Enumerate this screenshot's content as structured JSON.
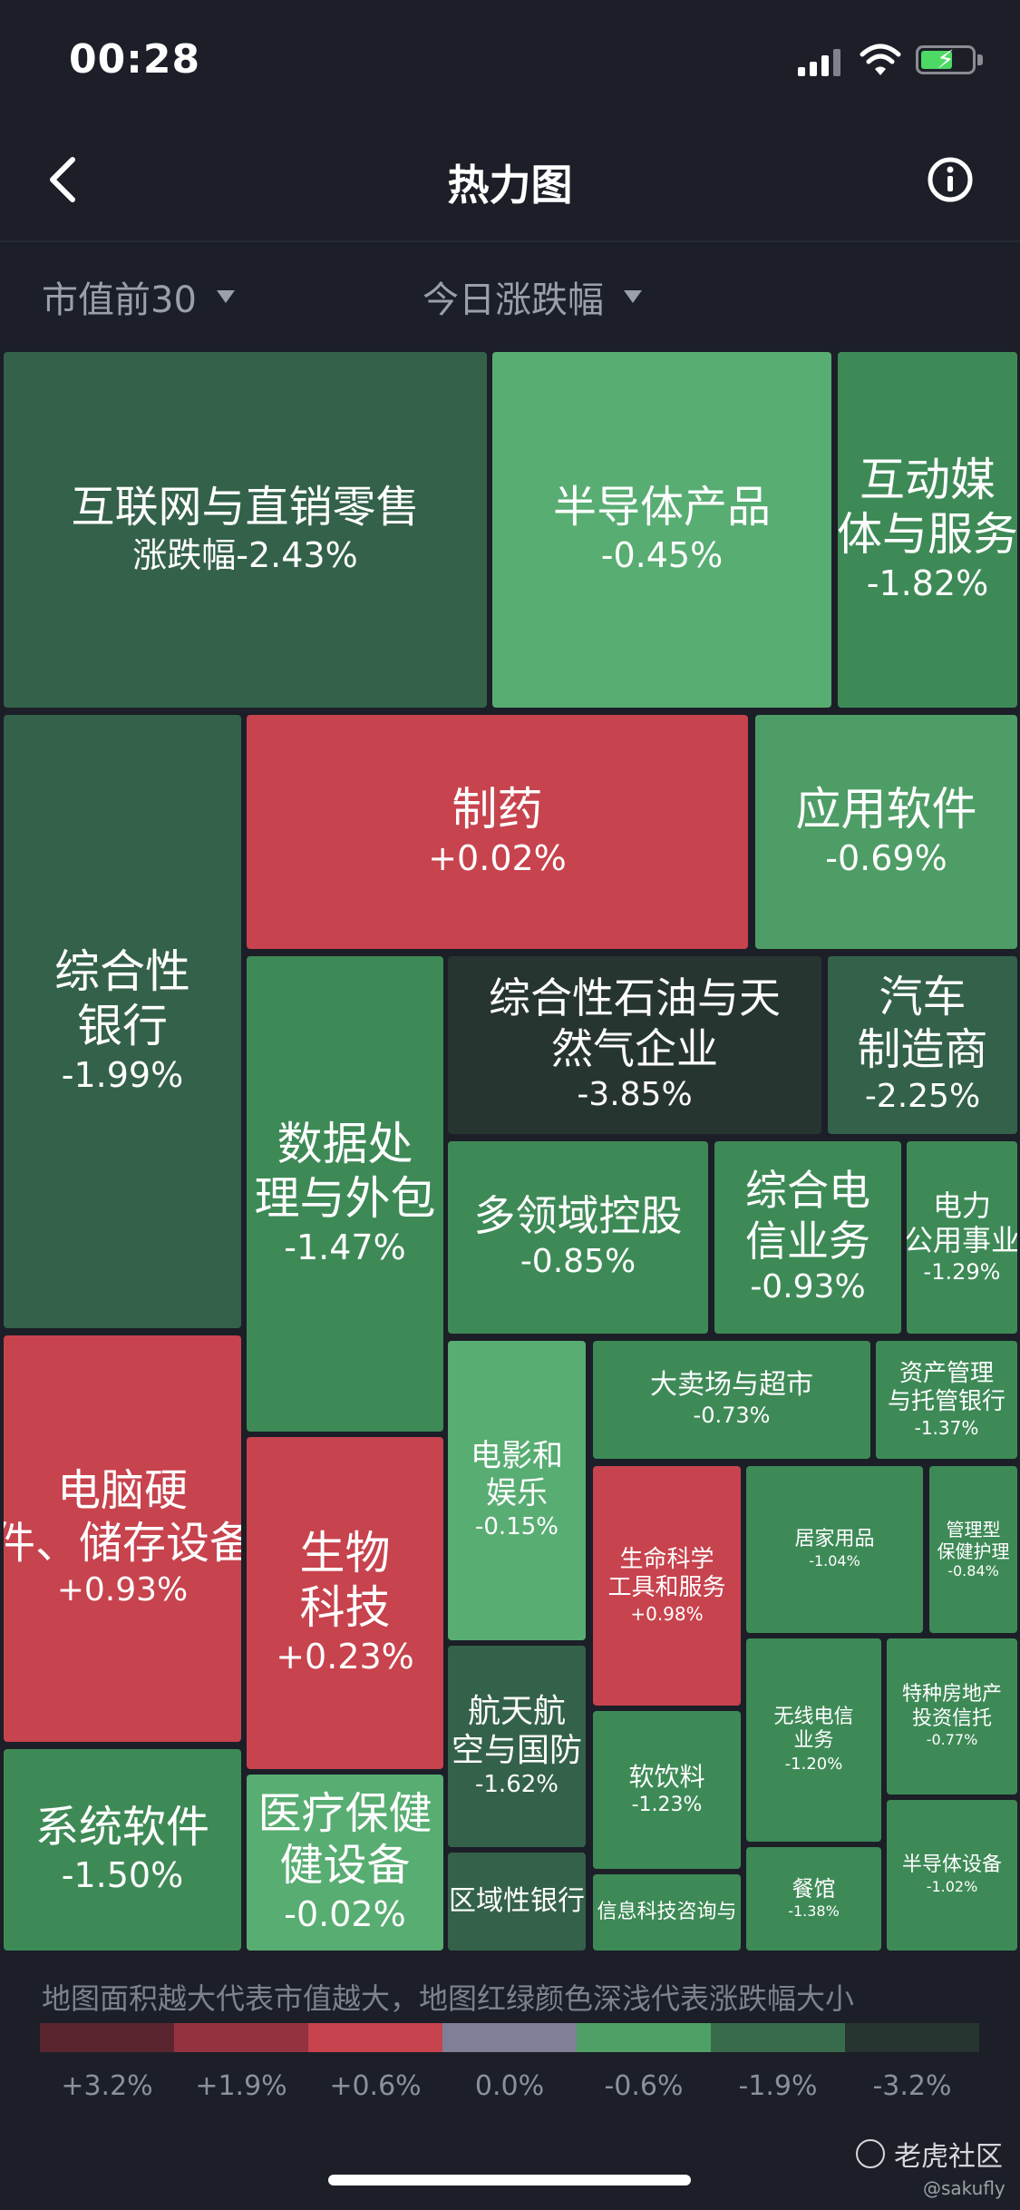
{
  "status_bar": {
    "time": "00:28"
  },
  "nav": {
    "title": "热力图",
    "back_icon": "chevron-left-icon",
    "info_icon": "info-circle-icon"
  },
  "filters": {
    "scope": "市值前30",
    "metric": "今日涨跌幅"
  },
  "colors": {
    "down_strong": "#273530",
    "down_mid": "#34614a",
    "down_soft": "#3e8a57",
    "down_light": "#4e9d66",
    "down_pale": "#58ad72",
    "up_mid": "#c7434e",
    "flat": "#7f7f97"
  },
  "treemap": [
    {
      "name": "互联网与直销零售",
      "change": "涨跌幅-2.43%"
    },
    {
      "name": "半导体产品",
      "change": "-0.45%"
    },
    {
      "name": "互动媒体与服务",
      "change": "-1.82%"
    },
    {
      "name": "综合性银行",
      "change": "-1.99%"
    },
    {
      "name": "制药",
      "change": "+0.02%"
    },
    {
      "name": "应用软件",
      "change": "-0.69%"
    },
    {
      "name": "数据处理与外包",
      "change": "-1.47%"
    },
    {
      "name": "综合性石油与天然气企业",
      "change": "-3.85%"
    },
    {
      "name": "汽车制造商",
      "change": "-2.25%"
    },
    {
      "name": "多领域控股",
      "change": "-0.85%"
    },
    {
      "name": "综合电信业务",
      "change": "-0.93%"
    },
    {
      "name": "电力公用事业",
      "change": "-1.29%"
    },
    {
      "name": "电脑硬件、储存设备",
      "change": "+0.93%"
    },
    {
      "name": "生物科技",
      "change": "+0.23%"
    },
    {
      "name": "电影和娱乐",
      "change": "-0.15%"
    },
    {
      "name": "大卖场与超市",
      "change": "-0.73%"
    },
    {
      "name": "资产管理与托管银行",
      "change": "-1.37%"
    },
    {
      "name": "生命科学工具和服务",
      "change": "+0.98%"
    },
    {
      "name": "居家用品",
      "change": "-1.04%"
    },
    {
      "name": "管理型保健护理",
      "change": "-0.84%"
    },
    {
      "name": "系统软件",
      "change": "-1.50%"
    },
    {
      "name": "医疗保健设备",
      "change": "-0.02%"
    },
    {
      "name": "航天航空与国防",
      "change": "-1.62%"
    },
    {
      "name": "软饮料",
      "change": "-1.23%"
    },
    {
      "name": "无线电信业务",
      "change": "-1.20%"
    },
    {
      "name": "特种房地产投资信托",
      "change": "-0.77%"
    },
    {
      "name": "区域性银行",
      "change": ""
    },
    {
      "name": "信息科技咨询与其他服务",
      "change": ""
    },
    {
      "name": "餐馆",
      "change": "-1.38%"
    },
    {
      "name": "半导体设备",
      "change": "-1.02%"
    }
  ],
  "legend": {
    "caption": "地图面积越大代表市值越大，地图红绿颜色深浅代表涨跌幅大小",
    "stops": [
      {
        "label": "+3.2%",
        "color": "#5b2530"
      },
      {
        "label": "+1.9%",
        "color": "#953240"
      },
      {
        "label": "+0.6%",
        "color": "#c7434e"
      },
      {
        "label": "0.0%",
        "color": "#7f7f97"
      },
      {
        "label": "-0.6%",
        "color": "#4fa066"
      },
      {
        "label": "-1.9%",
        "color": "#386b4b"
      },
      {
        "label": "-3.2%",
        "color": "#273530"
      }
    ]
  },
  "footer": {
    "brand": "老虎社区",
    "user": "@sakufly"
  }
}
